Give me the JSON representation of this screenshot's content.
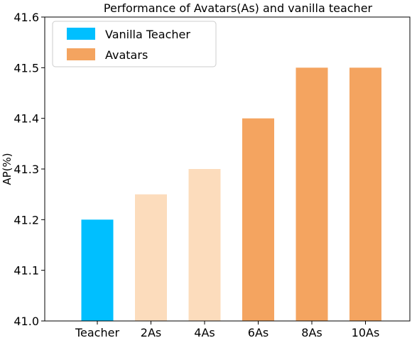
{
  "chart_data": {
    "type": "bar",
    "title": "Performance of Avatars(As) and vanilla teacher",
    "ylabel": "AP(%)",
    "xlabel": "",
    "ylim": [
      41.0,
      41.6
    ],
    "yticks": [
      "41.0",
      "41.1",
      "41.2",
      "41.3",
      "41.4",
      "41.5",
      "41.6"
    ],
    "ytick_values": [
      41.0,
      41.1,
      41.2,
      41.3,
      41.4,
      41.5,
      41.6
    ],
    "categories": [
      "Teacher",
      "2As",
      "4As",
      "6As",
      "8As",
      "10As"
    ],
    "values": [
      41.2,
      41.25,
      41.3,
      41.4,
      41.5,
      41.5
    ],
    "bar_colors": [
      "#00bfff",
      "#fcdcbc",
      "#fcdcbc",
      "#f4a460",
      "#f4a460",
      "#f4a460"
    ],
    "grid": false,
    "legend_position": "top-left",
    "legend": [
      {
        "label": "Vanilla Teacher",
        "color": "#00bfff"
      },
      {
        "label": "Avatars",
        "color": "#f4a460"
      }
    ]
  }
}
